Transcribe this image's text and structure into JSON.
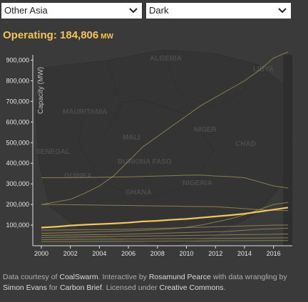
{
  "controls": {
    "region_value": "Other Asia",
    "theme_value": "Dark"
  },
  "summary": {
    "label": "Operating: ",
    "value": "184,806",
    "unit": "MW"
  },
  "map_labels": [
    "ALGERIA",
    "LIBYA",
    "MAURITANIA",
    "NIGER",
    "MALI",
    "CHAD",
    "SENEGAL",
    "BURKINA FASO",
    "GUINEA",
    "NIGERIA",
    "GHANA"
  ],
  "footer": {
    "t1": "Data courtesy of ",
    "l1": "CoalSwarm",
    "t2": ". Interactive by ",
    "l2": "Rosamund Pearce",
    "t3": " with data wrangling by ",
    "l3": "Simon Evans",
    "t4": " for ",
    "l4": "Carbon Brief",
    "t5": ". Licensed under ",
    "l5": "Creative Commons",
    "t6": "."
  },
  "colors": {
    "highlight": "#f3c553",
    "other_series": "#9a8a54",
    "axis": "#e0e0e0",
    "background": "#3a3a3a"
  },
  "chart_data": {
    "type": "line",
    "ylabel": "Capacity (MW)",
    "xlabel": "",
    "x": [
      2000,
      2001,
      2002,
      2003,
      2004,
      2005,
      2006,
      2007,
      2008,
      2009,
      2010,
      2011,
      2012,
      2013,
      2014,
      2015,
      2016,
      2017
    ],
    "xlim": [
      2000,
      2017
    ],
    "ylim": [
      0,
      950000
    ],
    "xticks": [
      "2000",
      "2002",
      "2004",
      "2006",
      "2008",
      "2010",
      "2012",
      "2014",
      "2016"
    ],
    "yticks": [
      "100,000",
      "200,000",
      "300,000",
      "400,000",
      "500,000",
      "600,000",
      "700,000",
      "800,000",
      "900,000"
    ],
    "grid": false,
    "highlight": {
      "name": "Other Asia",
      "values": [
        88000,
        92000,
        98000,
        102000,
        105000,
        108000,
        112000,
        118000,
        121000,
        126000,
        130000,
        136000,
        142000,
        148000,
        155000,
        165000,
        175000,
        185000
      ]
    },
    "series": [
      {
        "values": [
          200000,
          212000,
          225000,
          255000,
          290000,
          340000,
          410000,
          480000,
          530000,
          580000,
          630000,
          680000,
          720000,
          760000,
          800000,
          850000,
          910000,
          940000
        ]
      },
      {
        "values": [
          330000,
          330000,
          330000,
          331000,
          332000,
          333000,
          334000,
          336000,
          338000,
          340000,
          342000,
          343000,
          338000,
          335000,
          330000,
          310000,
          290000,
          280000
        ]
      },
      {
        "values": [
          200000,
          200000,
          199000,
          198000,
          197000,
          196000,
          195000,
          194000,
          193000,
          192000,
          191000,
          190000,
          189000,
          185000,
          180000,
          175000,
          172000,
          170000
        ]
      },
      {
        "values": [
          60000,
          62000,
          64000,
          66000,
          68000,
          70000,
          72000,
          75000,
          78000,
          82000,
          90000,
          100000,
          115000,
          130000,
          150000,
          175000,
          200000,
          210000
        ]
      },
      {
        "values": [
          75000,
          76000,
          77000,
          78000,
          78000,
          79000,
          80000,
          82000,
          84000,
          86000,
          88000,
          90000,
          92000,
          94000,
          96000,
          98000,
          100000,
          100000
        ]
      },
      {
        "values": [
          50000,
          51000,
          52000,
          53000,
          54000,
          55000,
          56000,
          58000,
          60000,
          62000,
          64000,
          66000,
          68000,
          70000,
          75000,
          80000,
          82000,
          85000
        ]
      },
      {
        "values": [
          40000,
          41000,
          42000,
          43000,
          44000,
          45000,
          46000,
          47000,
          48000,
          49000,
          50000,
          51000,
          52000,
          53000,
          54000,
          55000,
          56000,
          57000
        ]
      },
      {
        "values": [
          30000,
          30000,
          31000,
          31000,
          32000,
          32000,
          33000,
          33000,
          34000,
          34000,
          35000,
          35000,
          36000,
          36000,
          37000,
          37000,
          38000,
          38000
        ]
      },
      {
        "values": [
          20000,
          20000,
          20000,
          21000,
          21000,
          21000,
          22000,
          22000,
          22000,
          23000,
          23000,
          23000,
          24000,
          24000,
          24000,
          25000,
          25000,
          25000
        ]
      }
    ]
  }
}
